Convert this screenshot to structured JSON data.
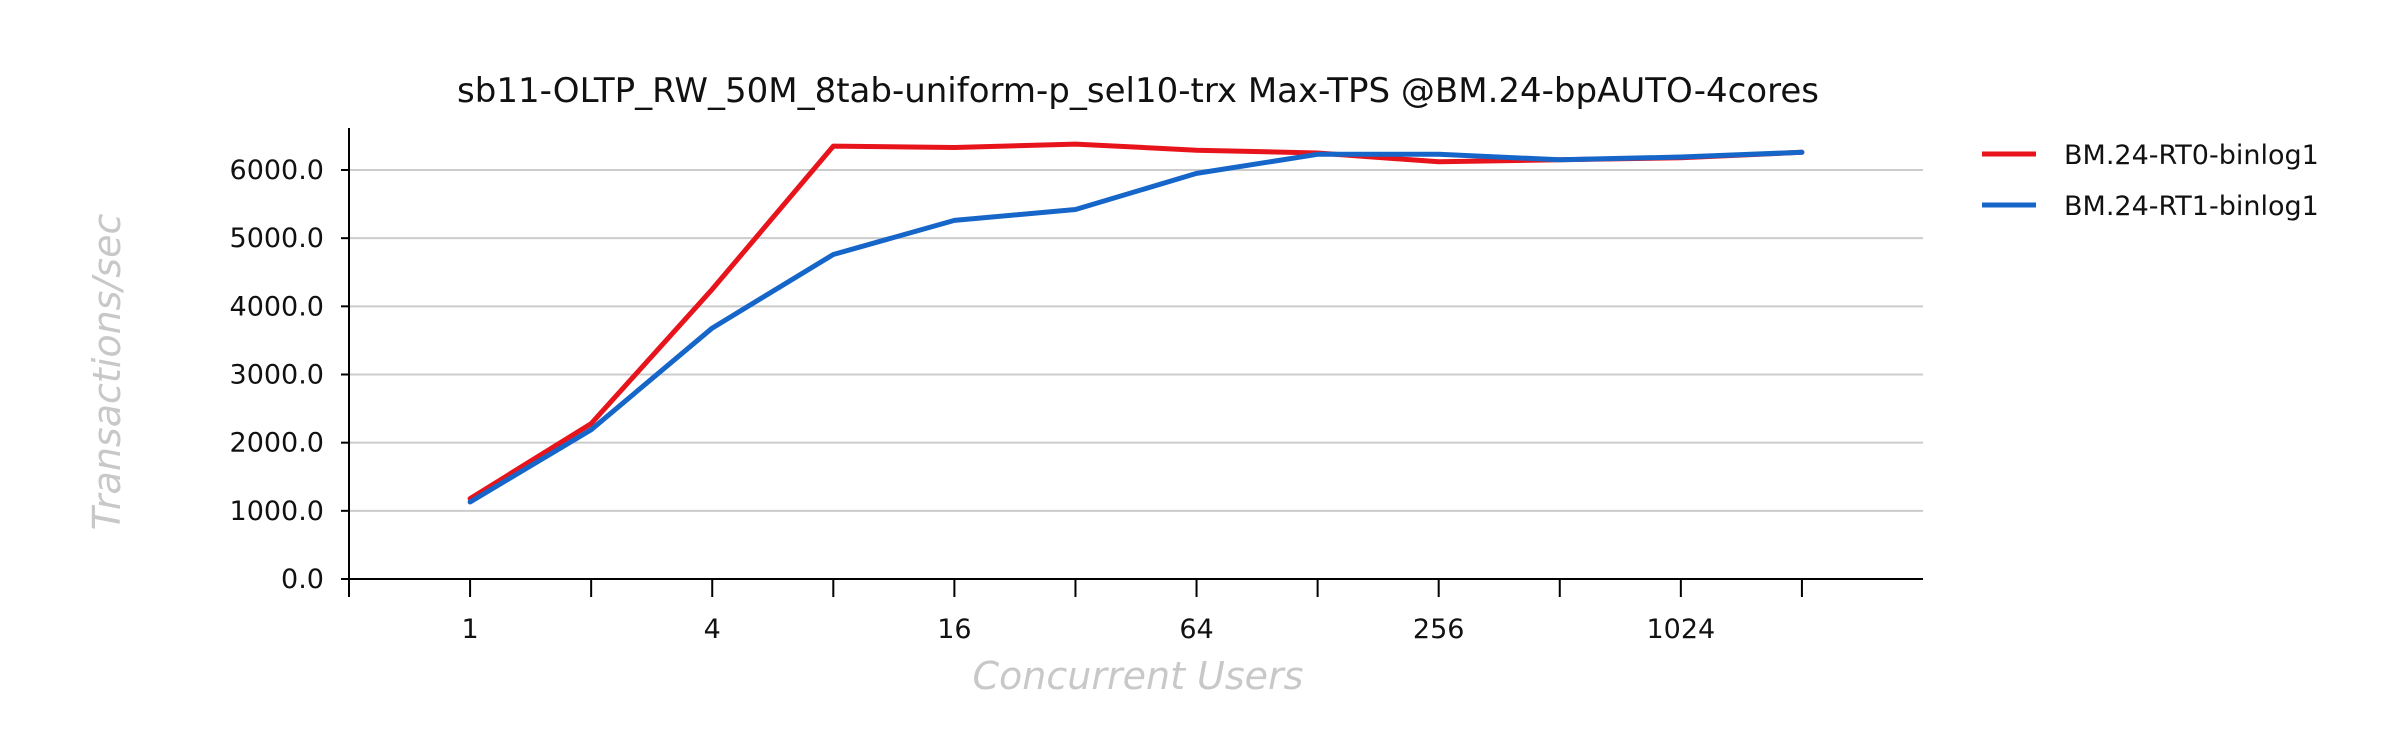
{
  "chart_data": {
    "type": "line",
    "title": "sb11-OLTP_RW_50M_8tab-uniform-p_sel10-trx Max-TPS @BM.24-bpAUTO-4cores",
    "xlabel": "Concurrent Users",
    "ylabel": "Transactions/sec",
    "x_scale": "log2",
    "x": [
      1,
      2,
      4,
      8,
      16,
      32,
      64,
      128,
      256,
      512,
      1024,
      2048
    ],
    "x_tick_labels": [
      "1",
      "4",
      "16",
      "64",
      "256",
      "1024"
    ],
    "x_tick_label_values": [
      1,
      4,
      16,
      64,
      256,
      1024
    ],
    "x_tick_mark_values": [
      0.5,
      1,
      2,
      4,
      8,
      16,
      32,
      64,
      128,
      256,
      512,
      1024,
      2048
    ],
    "xlim": [
      0.5,
      4096
    ],
    "ylim": [
      0,
      6000
    ],
    "y_ticks": [
      0,
      1000,
      2000,
      3000,
      4000,
      5000,
      6000
    ],
    "y_tick_labels": [
      "0.0",
      "1000.0",
      "2000.0",
      "3000.0",
      "4000.0",
      "5000.0",
      "6000.0"
    ],
    "grid": "horizontal",
    "legend_position": "right",
    "series": [
      {
        "name": "BM.24-RT0-binlog1",
        "color": "#e8141c",
        "values": [
          1180,
          2280,
          4250,
          6350,
          6330,
          6380,
          6290,
          6250,
          6120,
          6150,
          6180,
          6260
        ]
      },
      {
        "name": "BM.24-RT1-binlog1",
        "color": "#1666c9",
        "values": [
          1130,
          2190,
          3680,
          4760,
          5260,
          5420,
          5950,
          6230,
          6230,
          6150,
          6190,
          6260
        ]
      }
    ]
  }
}
